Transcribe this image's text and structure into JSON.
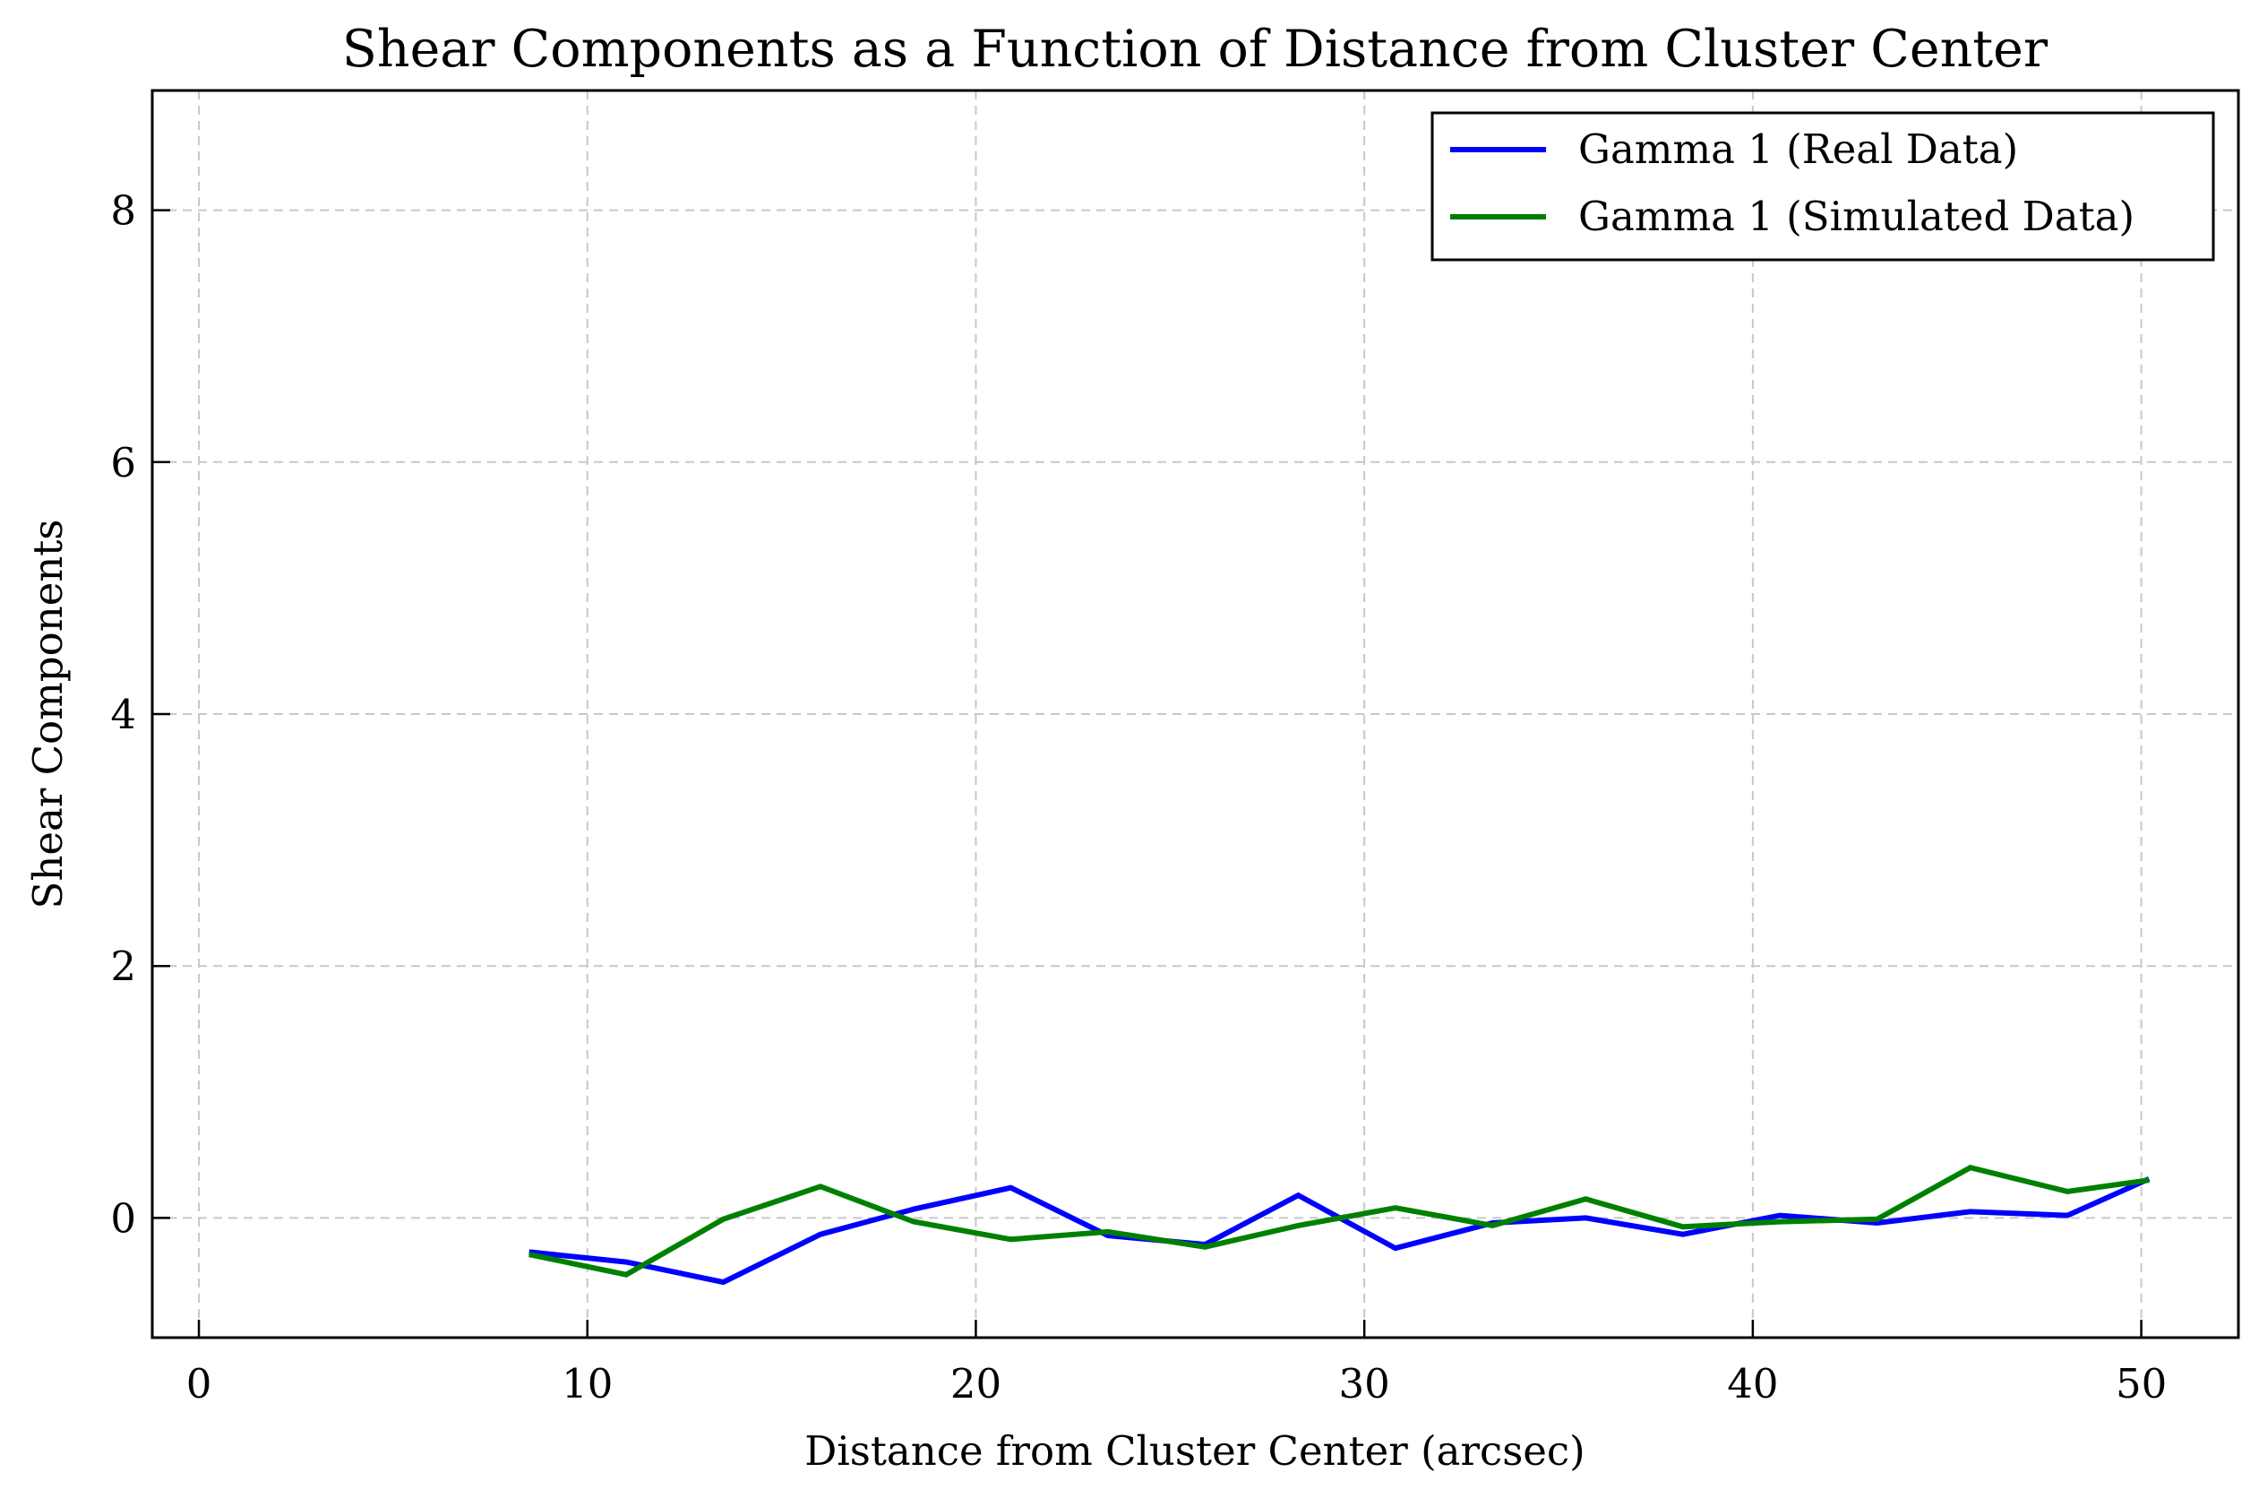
{
  "chart_data": {
    "type": "line",
    "title": "Shear Components as a Function of Distance from Cluster Center",
    "xlabel": "Distance from Cluster Center (arcsec)",
    "ylabel": "Shear Components",
    "xlim": [
      -1.2,
      52.5
    ],
    "ylim": [
      -0.95,
      8.95
    ],
    "xticks": [
      0,
      10,
      20,
      30,
      40,
      50
    ],
    "yticks": [
      0,
      2,
      4,
      6,
      8
    ],
    "grid": true,
    "legend_position": "top-right",
    "x": [
      8.5,
      11.0,
      13.5,
      16.0,
      18.4,
      20.9,
      23.4,
      25.9,
      28.3,
      30.8,
      33.3,
      35.7,
      38.2,
      40.7,
      43.2,
      45.6,
      48.1,
      50.2
    ],
    "series": [
      {
        "name": "Gamma 1 (Real Data)",
        "color": "#0000ff",
        "values": [
          -0.27,
          -0.35,
          -0.51,
          -0.13,
          0.07,
          0.24,
          -0.14,
          -0.21,
          0.18,
          -0.24,
          -0.04,
          0.0,
          -0.13,
          0.02,
          -0.04,
          0.05,
          0.02,
          0.31
        ]
      },
      {
        "name": "Gamma 1 (Simulated Data)",
        "color": "#008000",
        "values": [
          -0.29,
          -0.45,
          -0.01,
          0.25,
          -0.03,
          -0.17,
          -0.11,
          -0.23,
          -0.06,
          0.08,
          -0.06,
          0.15,
          -0.07,
          -0.03,
          -0.01,
          0.4,
          0.21,
          0.3
        ]
      }
    ]
  }
}
